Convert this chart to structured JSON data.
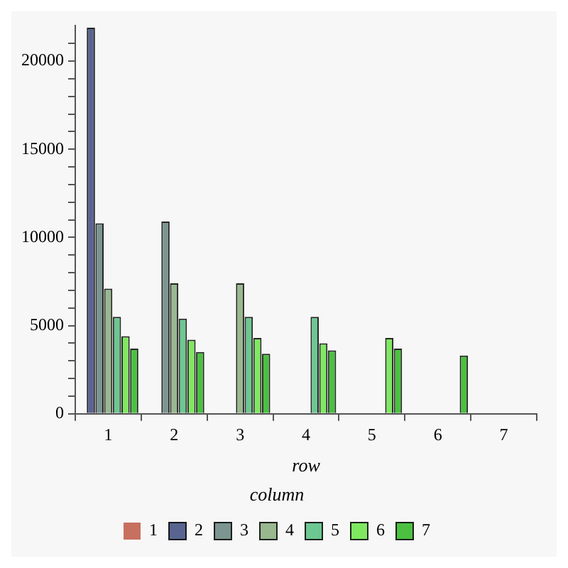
{
  "chart_data": {
    "type": "bar",
    "xlabel": "row",
    "legend_title": "column",
    "legend": "bottom",
    "categories": [
      "1",
      "2",
      "3",
      "4",
      "5",
      "6",
      "7"
    ],
    "series": [
      {
        "name": "1",
        "color": "#c87060",
        "values": [
          0,
          0,
          0,
          0,
          0,
          0,
          0
        ]
      },
      {
        "name": "2",
        "color": "#5a6490",
        "values": [
          21900,
          0,
          0,
          0,
          0,
          0,
          0
        ]
      },
      {
        "name": "3",
        "color": "#7d9590",
        "values": [
          10800,
          10900,
          0,
          0,
          0,
          0,
          0
        ]
      },
      {
        "name": "4",
        "color": "#9ab890",
        "values": [
          7100,
          7400,
          7400,
          0,
          0,
          0,
          0
        ]
      },
      {
        "name": "5",
        "color": "#6cc890",
        "values": [
          5500,
          5400,
          5500,
          5500,
          0,
          0,
          0
        ]
      },
      {
        "name": "6",
        "color": "#7ee860",
        "values": [
          4400,
          4200,
          4300,
          4000,
          4300,
          0,
          0
        ]
      },
      {
        "name": "7",
        "color": "#4cc040",
        "values": [
          3700,
          3500,
          3400,
          3600,
          3700,
          3300,
          0
        ]
      }
    ],
    "ylim": [
      0,
      22000
    ],
    "yticks": [
      0,
      {
        "value": 1000,
        "label": null
      },
      {
        "value": 2000,
        "label": null
      },
      {
        "value": 3000,
        "label": null
      },
      {
        "value": 4000,
        "label": null
      },
      5000,
      {
        "value": 6000,
        "label": null
      },
      {
        "value": 7000,
        "label": null
      },
      {
        "value": 8000,
        "label": null
      },
      {
        "value": 9000,
        "label": null
      },
      10000,
      {
        "value": 11000,
        "label": null
      },
      {
        "value": 12000,
        "label": null
      },
      {
        "value": 13000,
        "label": null
      },
      {
        "value": 14000,
        "label": null
      },
      15000,
      {
        "value": 16000,
        "label": null
      },
      {
        "value": 17000,
        "label": null
      },
      {
        "value": 18000,
        "label": null
      },
      {
        "value": 19000,
        "label": null
      },
      20000,
      {
        "value": 21000,
        "label": null
      }
    ]
  }
}
